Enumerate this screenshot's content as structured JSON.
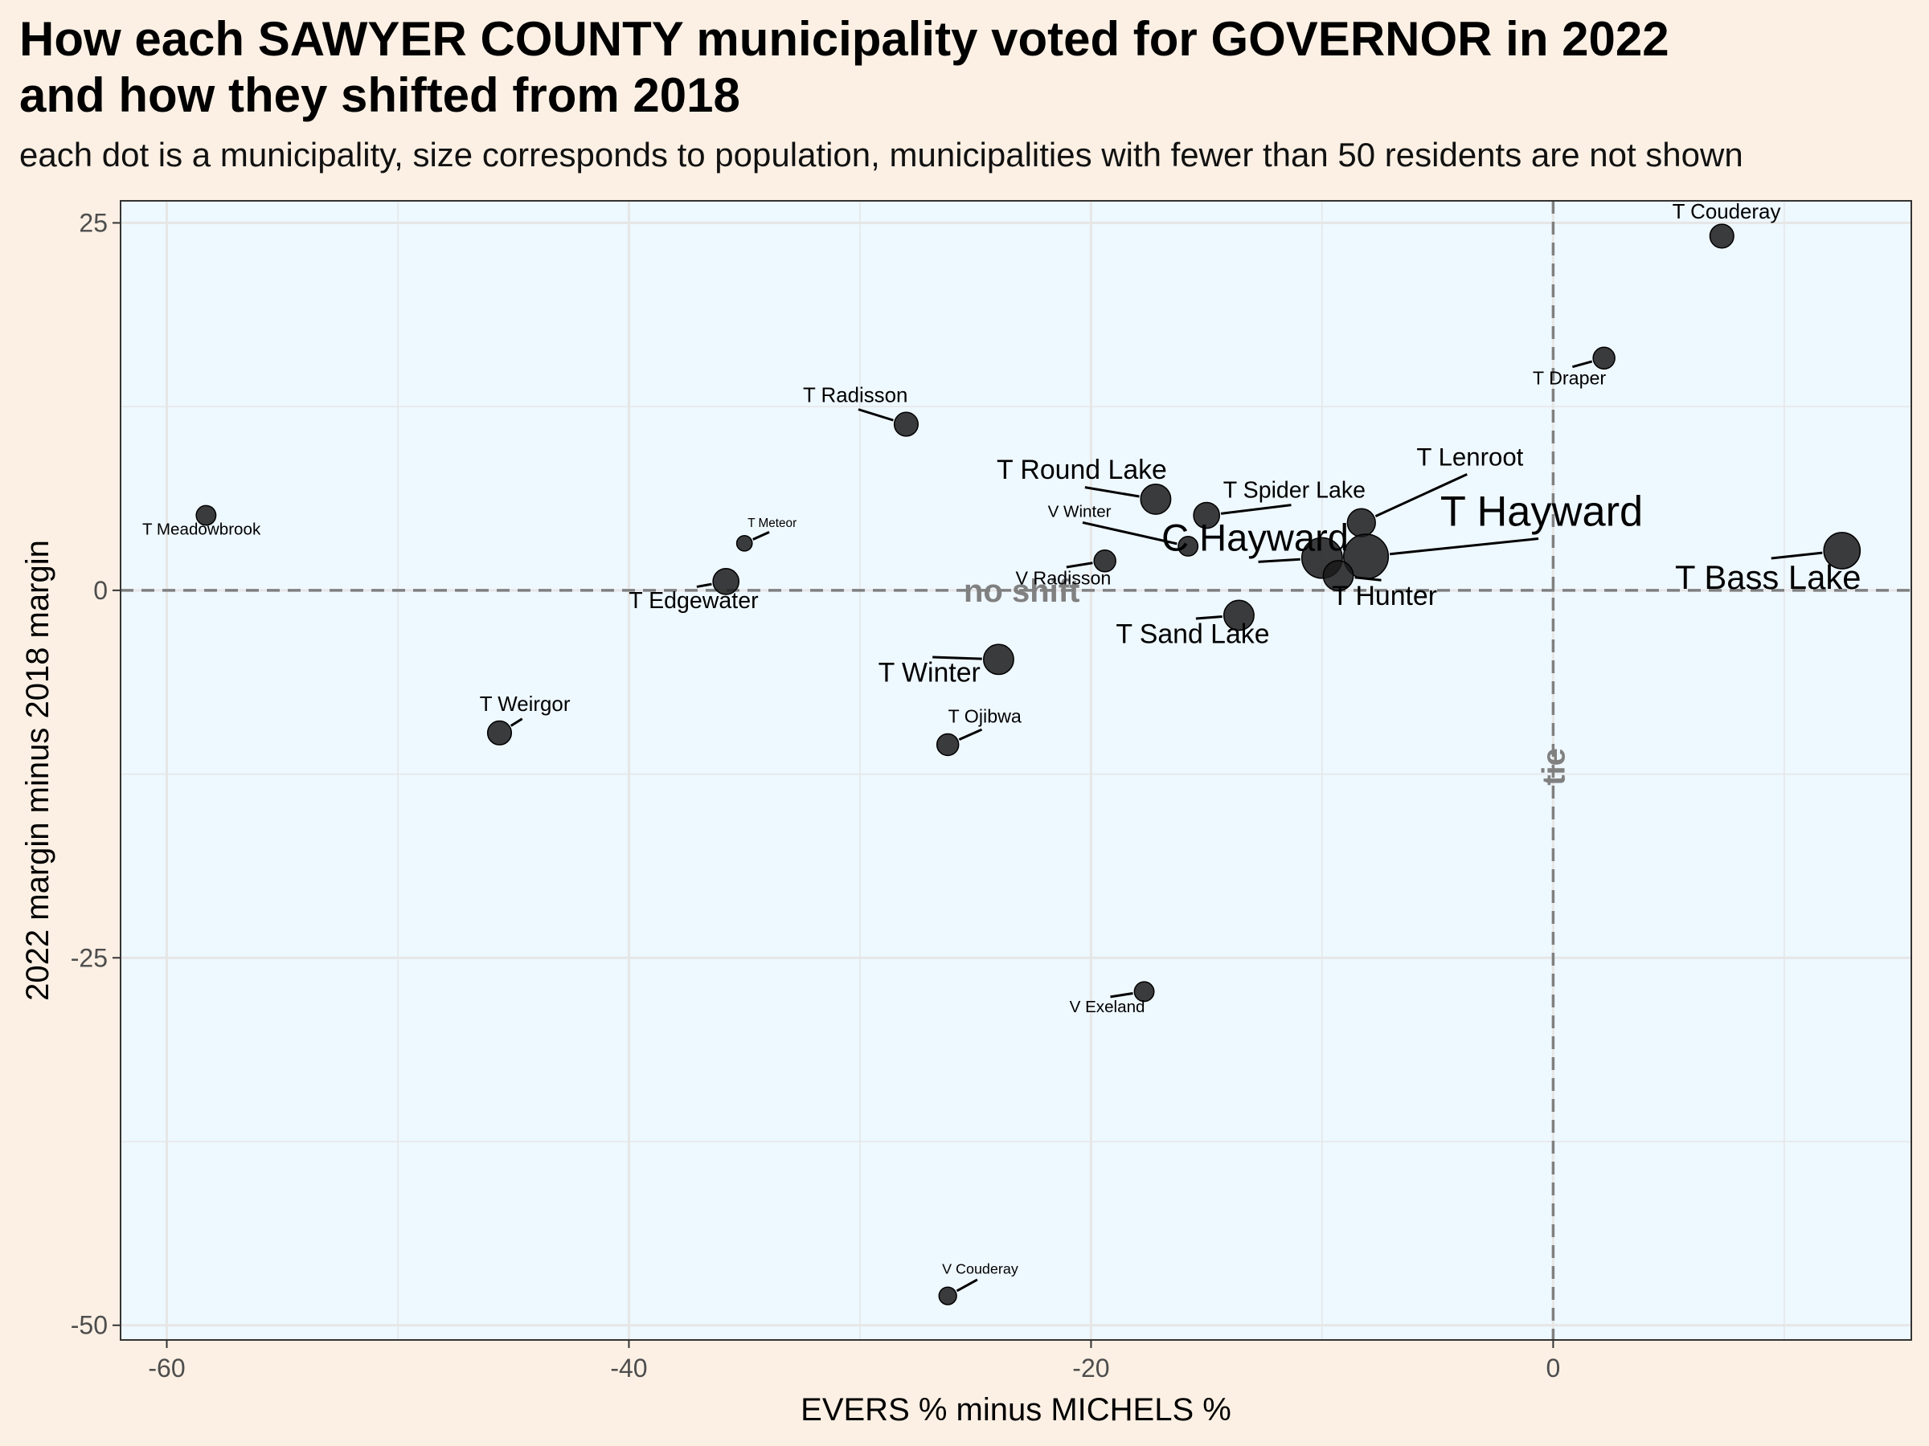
{
  "title_line1": "How each SAWYER COUNTY municipality voted for GOVERNOR in 2022",
  "title_line2": "and how they shifted from 2018",
  "subtitle": "each dot is a municipality, size corresponds to population, municipalities with fewer than 50 residents are not shown",
  "colors": {
    "page_background": "#fcf0e4",
    "panel_background": "#eef8ff",
    "point_fill": "#1a1a1a",
    "reference_line": "#808080",
    "grid": "#e6e6e6"
  },
  "chart_data": {
    "type": "scatter",
    "xlabel": "EVERS % minus MICHELS %",
    "ylabel": "2022 margin minus 2018 margin",
    "xlim": [
      -62,
      15.5
    ],
    "ylim": [
      -51,
      26.5
    ],
    "x_ticks": [
      -60,
      -40,
      -20,
      0
    ],
    "y_ticks": [
      -50,
      -25,
      0,
      25
    ],
    "grid": true,
    "reference_lines": [
      {
        "orientation": "horizontal",
        "value": 0,
        "label": "no shift"
      },
      {
        "orientation": "vertical",
        "value": 0,
        "label": "tie"
      }
    ],
    "points": [
      {
        "name": "T Couderay",
        "x": 7.3,
        "y": 24.1,
        "size": 3,
        "label_x": 7.5,
        "label_y": 25.3
      },
      {
        "name": "T Draper",
        "x": 2.2,
        "y": 15.8,
        "size": 2.5,
        "label_x": 0.7,
        "label_y": 14.0
      },
      {
        "name": "T Radisson",
        "x": -28.0,
        "y": 11.3,
        "size": 3,
        "label_x": -30.2,
        "label_y": 12.8
      },
      {
        "name": "T Round Lake",
        "x": -17.2,
        "y": 6.2,
        "size": 4.5,
        "label_x": -20.4,
        "label_y": 7.6
      },
      {
        "name": "T Spider Lake",
        "x": -15.0,
        "y": 5.1,
        "size": 3.5,
        "label_x": -11.2,
        "label_y": 6.3
      },
      {
        "name": "T Lenroot",
        "x": -8.3,
        "y": 4.6,
        "size": 4,
        "label_x": -3.6,
        "label_y": 8.5
      },
      {
        "name": "V Winter",
        "x": -15.8,
        "y": 3.0,
        "size": 2,
        "label_x": -20.5,
        "label_y": 5.0
      },
      {
        "name": "T Meadowbrook",
        "x": -58.3,
        "y": 5.1,
        "size": 2,
        "label_x": -58.5,
        "label_y": 3.8
      },
      {
        "name": "T Meteor",
        "x": -35.0,
        "y": 3.2,
        "size": 1,
        "label_x": -33.8,
        "label_y": 4.3
      },
      {
        "name": "T Hayward",
        "x": -8.1,
        "y": 2.3,
        "size": 8,
        "label_x": -0.5,
        "label_y": 4.4
      },
      {
        "name": "C Hayward",
        "x": -10.0,
        "y": 2.2,
        "size": 7,
        "label_x": -12.9,
        "label_y": 2.7
      },
      {
        "name": "V Radisson",
        "x": -19.4,
        "y": 2.0,
        "size": 2.5,
        "label_x": -21.2,
        "label_y": 0.4
      },
      {
        "name": "T Hunter",
        "x": -9.3,
        "y": 1.0,
        "size": 4.5,
        "label_x": -7.3,
        "label_y": -1.0
      },
      {
        "name": "T Bass Lake",
        "x": 12.5,
        "y": 2.7,
        "size": 6,
        "label_x": 9.3,
        "label_y": 0.1
      },
      {
        "name": "T Edgewater",
        "x": -35.8,
        "y": 0.6,
        "size": 3.5,
        "label_x": -37.2,
        "label_y": -1.2
      },
      {
        "name": "T Sand Lake",
        "x": -13.6,
        "y": -1.7,
        "size": 4.5,
        "label_x": -15.6,
        "label_y": -3.6
      },
      {
        "name": "T Winter",
        "x": -24.0,
        "y": -4.7,
        "size": 4.5,
        "label_x": -27.0,
        "label_y": -6.2
      },
      {
        "name": "T Weirgor",
        "x": -45.6,
        "y": -9.7,
        "size": 3,
        "label_x": -44.5,
        "label_y": -8.2
      },
      {
        "name": "T Ojibwa",
        "x": -26.2,
        "y": -10.5,
        "size": 2.5,
        "label_x": -24.6,
        "label_y": -9.0
      },
      {
        "name": "V Exeland",
        "x": -17.7,
        "y": -27.3,
        "size": 2,
        "label_x": -19.3,
        "label_y": -28.7
      },
      {
        "name": "V Couderay",
        "x": -26.2,
        "y": -48.0,
        "size": 1.5,
        "label_x": -24.8,
        "label_y": -46.5
      }
    ]
  }
}
